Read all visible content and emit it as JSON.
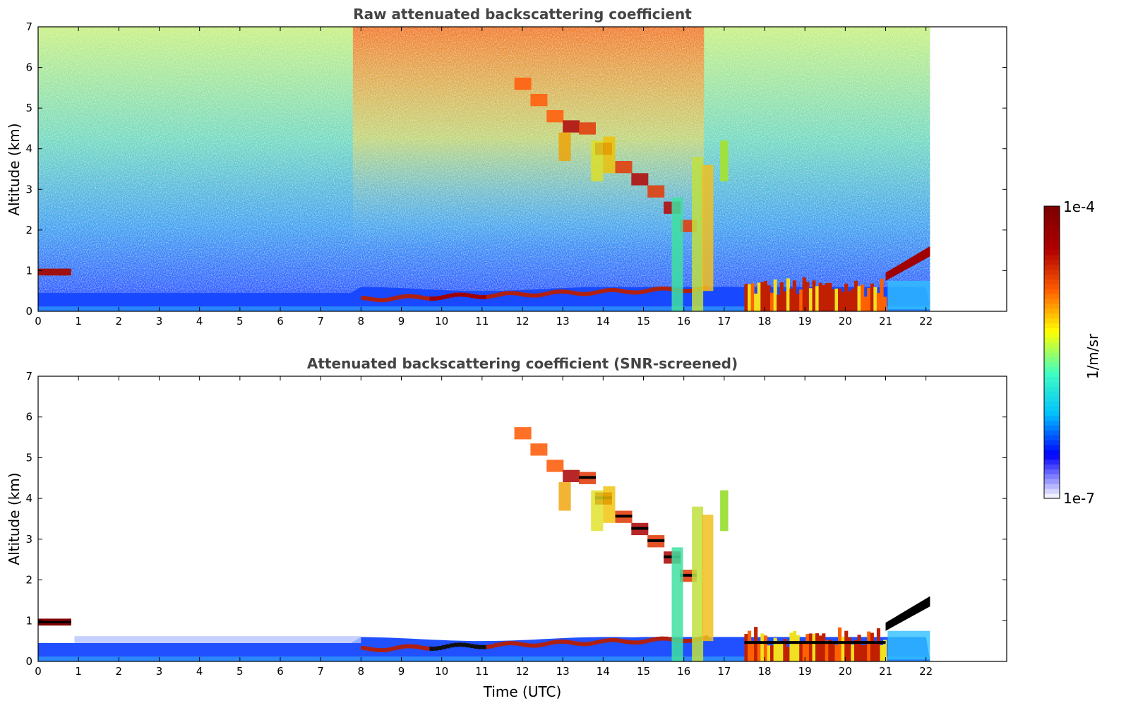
{
  "chart_data": [
    {
      "type": "heatmap",
      "title": "Raw attenuated backscattering coefficient",
      "xlabel": "",
      "ylabel": "Altitude (km)",
      "xlim": [
        0,
        24
      ],
      "ylim": [
        0,
        7
      ],
      "xticks": [
        "0",
        "1",
        "2",
        "3",
        "4",
        "5",
        "6",
        "7",
        "8",
        "9",
        "10",
        "11",
        "12",
        "13",
        "14",
        "15",
        "16",
        "17",
        "18",
        "19",
        "20",
        "21",
        "22"
      ],
      "yticks": [
        "0",
        "1",
        "2",
        "3",
        "4",
        "5",
        "6",
        "7"
      ],
      "data_end_time": 22.1,
      "features": [
        {
          "name": "low cloud layer",
          "t": [
            0,
            0.8
          ],
          "alt": [
            0.9,
            1.05
          ],
          "level": 1.0
        },
        {
          "name": "boundary layer",
          "t": [
            0,
            22.1
          ],
          "alt": [
            0,
            0.5
          ],
          "level": 0.2
        },
        {
          "name": "aerosol layer top",
          "t": [
            8,
            16
          ],
          "alt": [
            0.25,
            0.6
          ],
          "level": 1.0
        },
        {
          "name": "cirrus descending",
          "t": [
            11.8,
            16.0
          ],
          "alt": [
            5.7,
            1.8
          ],
          "level": 0.95
        },
        {
          "name": "precipitation shafts",
          "t": [
            15.6,
            16.6
          ],
          "alt": [
            0.3,
            3.8
          ],
          "level": 0.6
        },
        {
          "name": "isolated cloud",
          "t": [
            16.9,
            17.1
          ],
          "alt": [
            3.2,
            4.2
          ],
          "level": 0.65
        },
        {
          "name": "low convective cloud",
          "t": [
            18,
            21
          ],
          "alt": [
            0,
            1.1
          ],
          "level": 0.95
        },
        {
          "name": "rising cloud base",
          "t": [
            21.0,
            22.1
          ],
          "alt": [
            0.9,
            1.55
          ],
          "level": 1.0
        }
      ]
    },
    {
      "type": "heatmap",
      "title": "Attenuated backscattering coefficient (SNR-screened)",
      "xlabel": "Time (UTC)",
      "ylabel": "Altitude (km)",
      "xlim": [
        0,
        24
      ],
      "ylim": [
        0,
        7
      ],
      "xticks": [
        "0",
        "1",
        "2",
        "3",
        "4",
        "5",
        "6",
        "7",
        "8",
        "9",
        "10",
        "11",
        "12",
        "13",
        "14",
        "15",
        "16",
        "17",
        "18",
        "19",
        "20",
        "21",
        "22"
      ],
      "yticks": [
        "0",
        "1",
        "2",
        "3",
        "4",
        "5",
        "6",
        "7"
      ],
      "data_end_time": 22.1
    }
  ],
  "colorbar": {
    "label": "1/m/sr",
    "max_label": "1e-4",
    "min_label": "1e-7",
    "colormap": [
      "#f0f0ff",
      "#0000ff",
      "#00c0ff",
      "#40ffc0",
      "#ffff00",
      "#ff6000",
      "#b00000",
      "#7f0000"
    ]
  }
}
